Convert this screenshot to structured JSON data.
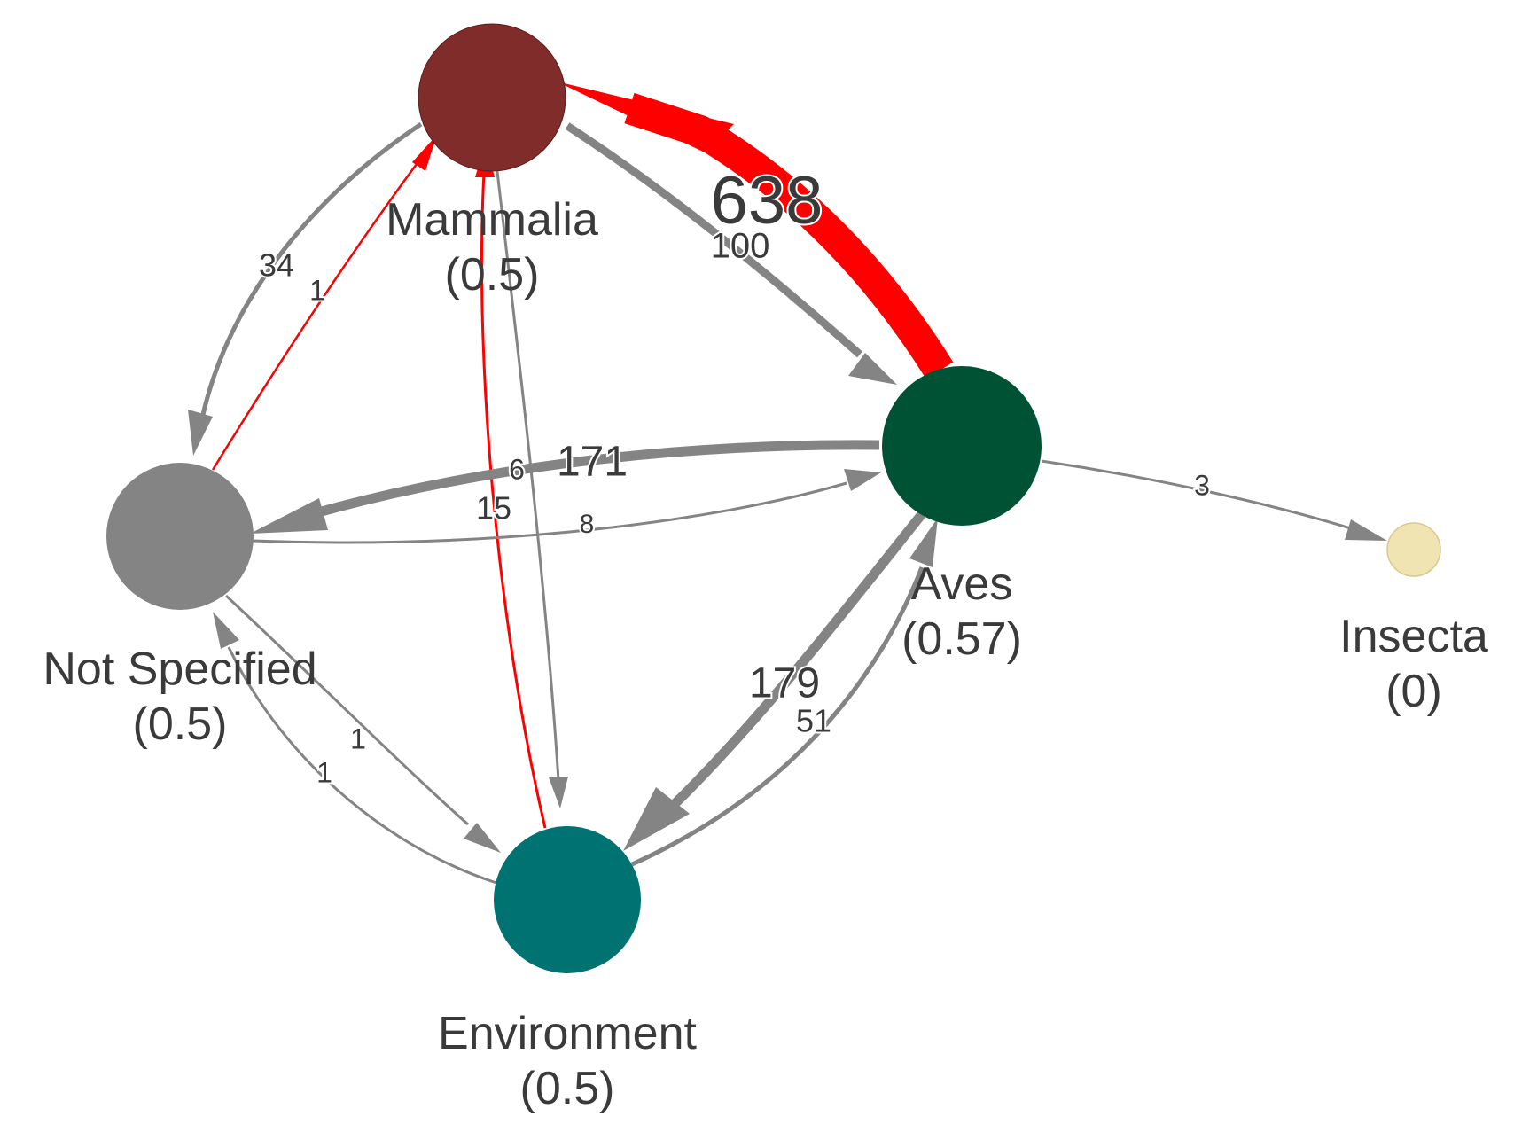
{
  "colors": {
    "background": "#ffffff",
    "edge_default": "#848484",
    "edge_highlight": "#ff0000",
    "label_text": "#3a3a3a"
  },
  "nodes": [
    {
      "id": "mammalia",
      "name": "Mammalia",
      "value": "(0.5)",
      "color": "#7f2c2a"
    },
    {
      "id": "aves",
      "name": "Aves",
      "value": "(0.57)",
      "color": "#005235"
    },
    {
      "id": "notspec",
      "name": "Not Specified",
      "value": "(0.5)",
      "color": "#848484"
    },
    {
      "id": "environment",
      "name": "Environment",
      "value": "(0.5)",
      "color": "#007272"
    },
    {
      "id": "insecta",
      "name": "Insecta",
      "value": "(0)",
      "color": "#f0e4b2"
    }
  ],
  "edges": [
    {
      "from": "aves",
      "to": "mammalia",
      "label": "638",
      "highlight": true
    },
    {
      "from": "mammalia",
      "to": "aves",
      "label": "100",
      "highlight": false
    },
    {
      "from": "mammalia",
      "to": "notspec",
      "label": "34",
      "highlight": false
    },
    {
      "from": "notspec",
      "to": "mammalia",
      "label": "1",
      "highlight": true
    },
    {
      "from": "mammalia",
      "to": "environment",
      "label": "6",
      "highlight": false
    },
    {
      "from": "environment",
      "to": "mammalia",
      "label": "15",
      "highlight": true
    },
    {
      "from": "aves",
      "to": "notspec",
      "label": "171",
      "highlight": false
    },
    {
      "from": "notspec",
      "to": "aves",
      "label": "8",
      "highlight": false
    },
    {
      "from": "aves",
      "to": "environment",
      "label": "179",
      "highlight": false
    },
    {
      "from": "environment",
      "to": "aves",
      "label": "51",
      "highlight": false
    },
    {
      "from": "notspec",
      "to": "environment",
      "label": "1",
      "highlight": false
    },
    {
      "from": "environment",
      "to": "notspec",
      "label": "1",
      "highlight": false
    },
    {
      "from": "aves",
      "to": "insecta",
      "label": "3",
      "highlight": false
    }
  ]
}
